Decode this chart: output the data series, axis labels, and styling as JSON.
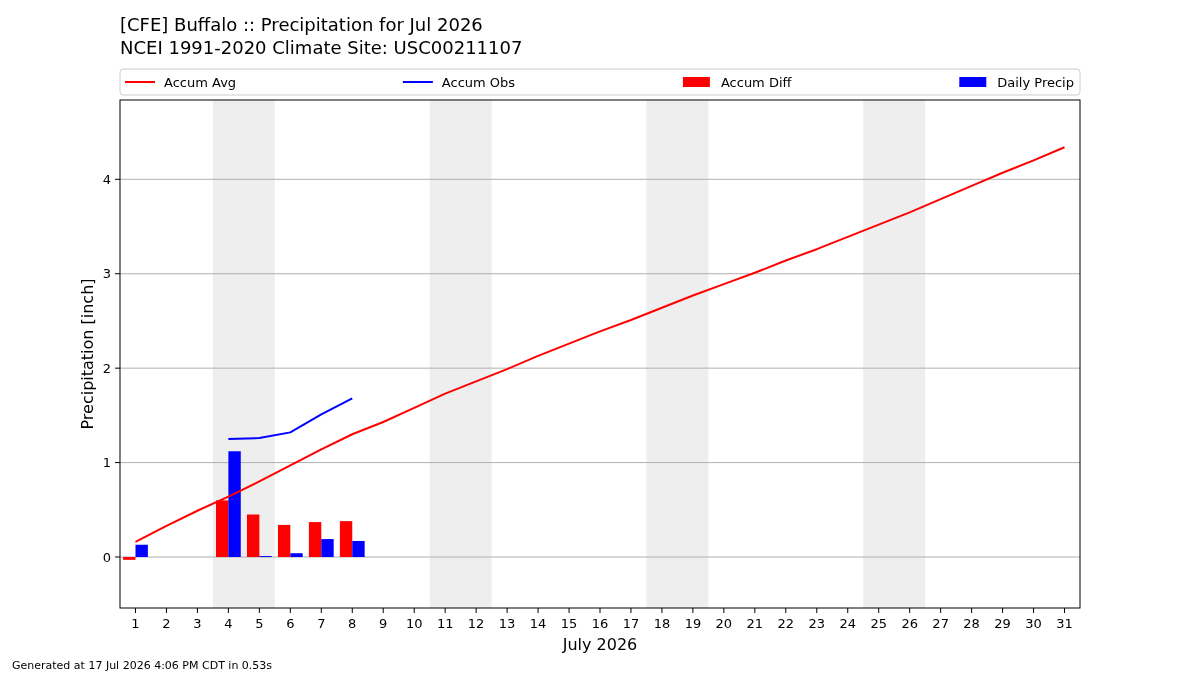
{
  "chart_data": {
    "type": "bar",
    "title": "[CFE] Buffalo :: Precipitation for Jul 2026",
    "subtitle": "NCEI 1991-2020 Climate Site: USC00211107",
    "xlabel": "July 2026",
    "ylabel": "Precipitation [inch]",
    "annotations": [
      "Generated at 17 Jul 2026 4:06 PM CDT in 0.53s"
    ],
    "x": [
      1,
      2,
      3,
      4,
      5,
      6,
      7,
      8,
      9,
      10,
      11,
      12,
      13,
      14,
      15,
      16,
      17,
      18,
      19,
      20,
      21,
      22,
      23,
      24,
      25,
      26,
      27,
      28,
      29,
      30,
      31
    ],
    "series": [
      {
        "name": "Accum Avg",
        "type": "line",
        "color": "#ff0000",
        "values": [
          0.16,
          0.33,
          0.49,
          0.64,
          0.8,
          0.97,
          1.14,
          1.3,
          1.43,
          1.58,
          1.73,
          1.86,
          1.99,
          2.13,
          2.26,
          2.39,
          2.51,
          2.64,
          2.77,
          2.89,
          3.01,
          3.14,
          3.26,
          3.39,
          3.52,
          3.65,
          3.79,
          3.93,
          4.07,
          4.2,
          4.34
        ]
      },
      {
        "name": "Accum Obs",
        "type": "line",
        "color": "#0000ff",
        "x": [
          4,
          5,
          6,
          7,
          8
        ],
        "values": [
          1.25,
          1.26,
          1.32,
          1.51,
          1.68
        ]
      },
      {
        "name": "Accum Diff",
        "color": "#ff0000",
        "x": [
          1,
          4,
          5,
          6,
          7,
          8
        ],
        "values": [
          -0.03,
          0.6,
          0.45,
          0.34,
          0.37,
          0.38
        ]
      },
      {
        "name": "Daily Precip",
        "color": "#0000ff",
        "x": [
          1,
          4,
          5,
          6,
          7,
          8
        ],
        "values": [
          0.13,
          1.12,
          0.01,
          0.04,
          0.19,
          0.17
        ]
      }
    ],
    "xlim": [
      0.5,
      31.5
    ],
    "xticks": [
      1,
      2,
      3,
      4,
      5,
      6,
      7,
      8,
      9,
      10,
      11,
      12,
      13,
      14,
      15,
      16,
      17,
      18,
      19,
      20,
      21,
      22,
      23,
      24,
      25,
      26,
      27,
      28,
      29,
      30,
      31
    ],
    "ylim": [
      -0.54,
      4.84
    ],
    "yticks": [
      0,
      1,
      2,
      3,
      4
    ],
    "bands": [
      {
        "axis": "x",
        "from": 3.5,
        "to": 5.5,
        "color": "#eeeeee"
      },
      {
        "axis": "x",
        "from": 10.5,
        "to": 12.5,
        "color": "#eeeeee"
      },
      {
        "axis": "x",
        "from": 17.5,
        "to": 19.5,
        "color": "#eeeeee"
      },
      {
        "axis": "x",
        "from": 24.5,
        "to": 26.5,
        "color": "#eeeeee"
      }
    ],
    "grid": "y",
    "legend": "top"
  }
}
